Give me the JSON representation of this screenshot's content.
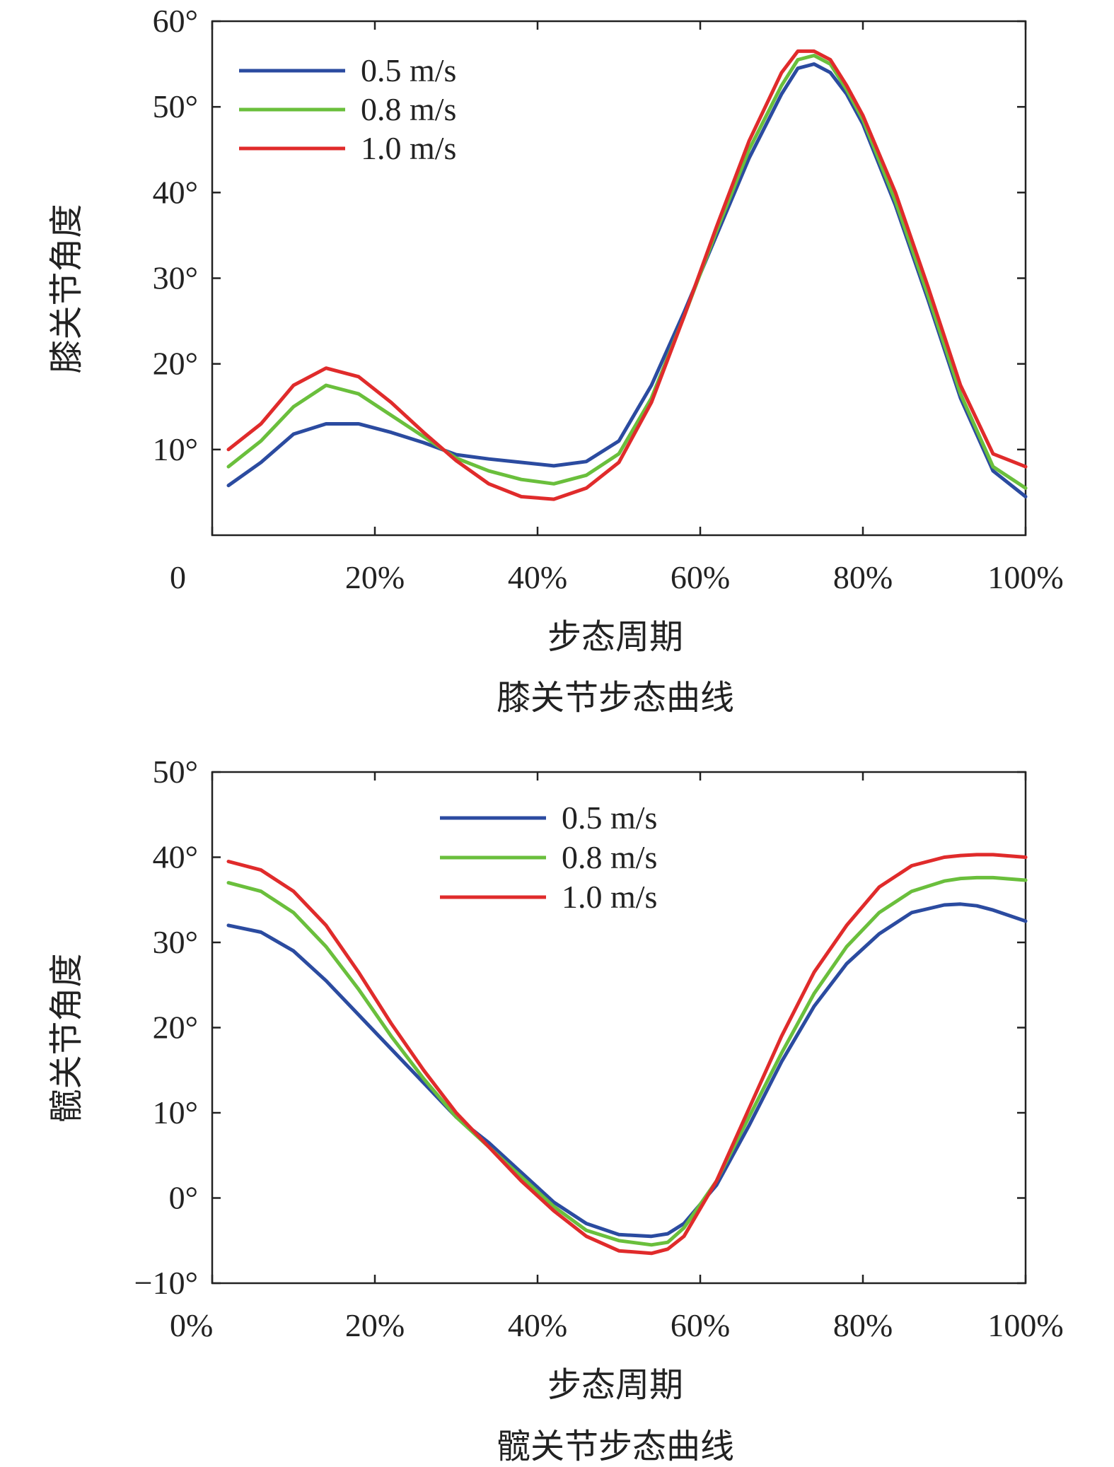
{
  "chart_data": [
    {
      "type": "line",
      "title": "膝关节步态曲线",
      "xlabel": "步态周期",
      "ylabel": "膝关节角度",
      "xlim": [
        0,
        100
      ],
      "ylim": [
        0,
        60
      ],
      "xticks": [
        {
          "value": 0,
          "label": "0"
        },
        {
          "value": 20,
          "label": "20%"
        },
        {
          "value": 40,
          "label": "40%"
        },
        {
          "value": 60,
          "label": "60%"
        },
        {
          "value": 80,
          "label": "80%"
        },
        {
          "value": 100,
          "label": "100%"
        }
      ],
      "yticks": [
        {
          "value": 10,
          "label": "10°"
        },
        {
          "value": 20,
          "label": "20°"
        },
        {
          "value": 30,
          "label": "30°"
        },
        {
          "value": 40,
          "label": "40°"
        },
        {
          "value": 50,
          "label": "50°"
        },
        {
          "value": 60,
          "label": "60°"
        }
      ],
      "grid": false,
      "legend": "top-left",
      "x": [
        2,
        6,
        10,
        14,
        18,
        22,
        26,
        30,
        34,
        38,
        42,
        46,
        50,
        54,
        58,
        62,
        66,
        70,
        72,
        74,
        76,
        78,
        80,
        84,
        88,
        92,
        96,
        100
      ],
      "series": [
        {
          "name": "0.5 m/s",
          "color": "#2b4ba0",
          "values": [
            5.8,
            8.5,
            11.8,
            13.0,
            13.0,
            12.0,
            10.8,
            9.4,
            8.9,
            8.5,
            8.1,
            8.6,
            11.0,
            17.5,
            26.0,
            35.0,
            44.0,
            51.5,
            54.5,
            55.0,
            54.0,
            51.5,
            48.0,
            38.5,
            27.5,
            16.0,
            7.5,
            4.5
          ]
        },
        {
          "name": "0.8 m/s",
          "color": "#6abf3c",
          "values": [
            8.0,
            11.0,
            15.0,
            17.5,
            16.5,
            14.0,
            11.5,
            9.0,
            7.5,
            6.5,
            6.0,
            7.0,
            9.5,
            16.0,
            25.5,
            35.5,
            45.0,
            52.5,
            55.5,
            56.0,
            55.0,
            52.0,
            48.5,
            39.0,
            28.0,
            16.5,
            8.0,
            5.5
          ]
        },
        {
          "name": "1.0 m/s",
          "color": "#e02b2b",
          "values": [
            10.0,
            13.0,
            17.5,
            19.5,
            18.5,
            15.5,
            12.0,
            8.7,
            6.0,
            4.5,
            4.2,
            5.5,
            8.5,
            15.5,
            25.5,
            36.0,
            46.0,
            54.0,
            56.5,
            56.5,
            55.5,
            52.5,
            49.0,
            40.0,
            29.0,
            17.5,
            9.5,
            8.0
          ]
        }
      ]
    },
    {
      "type": "line",
      "title": "髋关节步态曲线",
      "xlabel": "步态周期",
      "ylabel": "髋关节角度",
      "xlim": [
        0,
        100
      ],
      "ylim": [
        -10,
        50
      ],
      "xticks": [
        {
          "value": 0,
          "label": "0%"
        },
        {
          "value": 20,
          "label": "20%"
        },
        {
          "value": 40,
          "label": "40%"
        },
        {
          "value": 60,
          "label": "60%"
        },
        {
          "value": 80,
          "label": "80%"
        },
        {
          "value": 100,
          "label": "100%"
        }
      ],
      "yticks": [
        {
          "value": -10,
          "label": "−10°"
        },
        {
          "value": 0,
          "label": "0°"
        },
        {
          "value": 10,
          "label": "10°"
        },
        {
          "value": 20,
          "label": "20°"
        },
        {
          "value": 30,
          "label": "30°"
        },
        {
          "value": 40,
          "label": "40°"
        },
        {
          "value": 50,
          "label": "50°"
        }
      ],
      "grid": false,
      "legend": "top-center",
      "x": [
        2,
        6,
        10,
        14,
        18,
        22,
        26,
        30,
        34,
        38,
        42,
        46,
        50,
        54,
        56,
        58,
        62,
        66,
        70,
        74,
        78,
        82,
        86,
        90,
        92,
        94,
        96,
        100
      ],
      "series": [
        {
          "name": "0.5 m/s",
          "color": "#2b4ba0",
          "values": [
            32.0,
            31.2,
            29.0,
            25.5,
            21.5,
            17.5,
            13.5,
            9.5,
            6.5,
            3.0,
            -0.5,
            -3.0,
            -4.3,
            -4.5,
            -4.2,
            -3.0,
            1.5,
            8.5,
            16.0,
            22.5,
            27.5,
            31.0,
            33.5,
            34.4,
            34.5,
            34.3,
            33.8,
            32.5
          ]
        },
        {
          "name": "0.8 m/s",
          "color": "#6abf3c",
          "values": [
            37.0,
            36.0,
            33.5,
            29.5,
            24.5,
            19.0,
            14.0,
            9.5,
            6.0,
            2.5,
            -1.0,
            -3.8,
            -5.0,
            -5.5,
            -5.2,
            -3.5,
            2.0,
            9.5,
            17.0,
            24.0,
            29.5,
            33.5,
            36.0,
            37.2,
            37.5,
            37.6,
            37.6,
            37.3
          ]
        },
        {
          "name": "1.0 m/s",
          "color": "#e02b2b",
          "values": [
            39.5,
            38.5,
            36.0,
            32.0,
            26.5,
            20.5,
            15.0,
            10.0,
            6.0,
            2.0,
            -1.5,
            -4.5,
            -6.2,
            -6.5,
            -6.0,
            -4.5,
            2.0,
            10.5,
            19.0,
            26.5,
            32.0,
            36.5,
            39.0,
            40.0,
            40.2,
            40.3,
            40.3,
            40.0
          ]
        }
      ]
    }
  ]
}
